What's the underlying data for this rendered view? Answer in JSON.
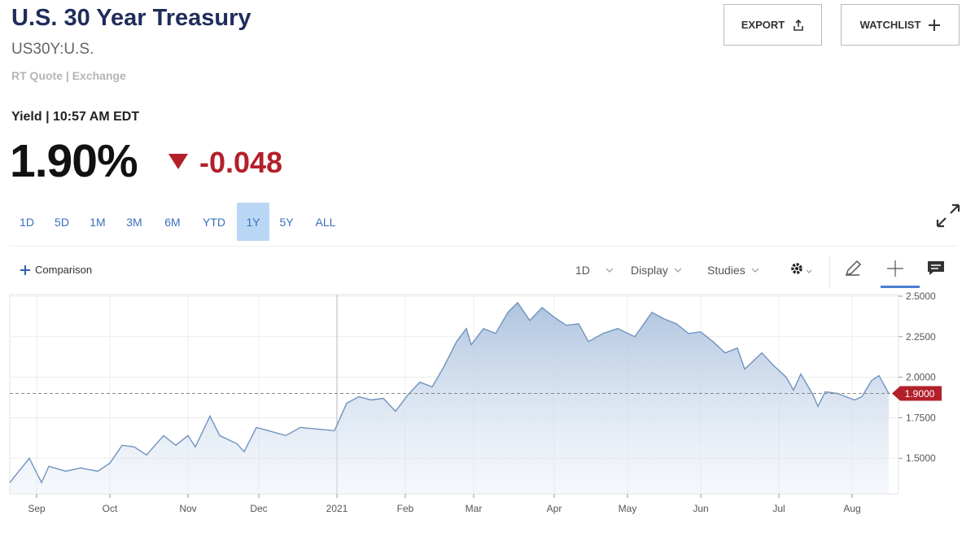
{
  "header": {
    "title": "U.S. 30 Year Treasury",
    "symbol": "US30Y:U.S.",
    "quote_source": "RT Quote | Exchange"
  },
  "buttons": [
    "EXPORT",
    "WATCHLIST"
  ],
  "quote": {
    "label": "Yield | 10:57 AM EDT",
    "last": "1.90%",
    "change": "-0.048"
  },
  "range_tabs": {
    "items": [
      "1D",
      "5D",
      "1M",
      "3M",
      "6M",
      "YTD",
      "1Y",
      "5Y",
      "ALL"
    ],
    "active_index": 6
  },
  "toolbar": {
    "comparison": "Comparison",
    "interval": "1D",
    "display": "Display",
    "studies": "Studies"
  },
  "chart": {
    "type": "area",
    "color": "#6f93bf",
    "x": [
      -11,
      -3,
      0,
      2,
      5,
      12,
      18,
      25,
      30,
      35,
      40,
      45,
      52,
      57,
      62,
      65,
      71,
      75,
      82,
      85,
      90,
      95,
      102,
      108,
      115,
      122,
      127,
      132,
      137,
      142,
      147,
      152,
      157,
      162,
      167,
      172,
      176,
      178,
      183,
      188,
      193,
      197,
      202,
      207,
      212,
      217,
      222,
      226,
      232,
      238,
      245,
      252,
      257,
      262,
      267,
      272,
      277,
      282,
      287,
      290,
      297,
      302,
      307,
      310,
      313,
      318,
      320,
      323,
      328,
      335,
      338,
      342,
      345,
      349
    ],
    "values": [
      1.35,
      1.5,
      1.41,
      1.35,
      1.45,
      1.42,
      1.44,
      1.42,
      1.47,
      1.58,
      1.57,
      1.52,
      1.64,
      1.58,
      1.64,
      1.57,
      1.76,
      1.64,
      1.59,
      1.54,
      1.69,
      1.67,
      1.64,
      1.69,
      1.68,
      1.67,
      1.84,
      1.88,
      1.86,
      1.87,
      1.79,
      1.89,
      1.97,
      1.94,
      2.07,
      2.22,
      2.3,
      2.2,
      2.3,
      2.27,
      2.4,
      2.46,
      2.35,
      2.43,
      2.37,
      2.32,
      2.33,
      2.22,
      2.27,
      2.3,
      2.25,
      2.4,
      2.36,
      2.33,
      2.27,
      2.28,
      2.22,
      2.15,
      2.18,
      2.05,
      2.15,
      2.07,
      2.0,
      1.92,
      2.02,
      1.89,
      1.82,
      1.91,
      1.9,
      1.86,
      1.88,
      1.98,
      2.01,
      1.9
    ],
    "xlim": [
      -11,
      353
    ],
    "xticks": [
      {
        "value": 0,
        "label": "Sep"
      },
      {
        "value": 30,
        "label": "Oct"
      },
      {
        "value": 62,
        "label": "Nov"
      },
      {
        "value": 91,
        "label": "Dec"
      },
      {
        "value": 123,
        "label": "2021"
      },
      {
        "value": 151,
        "label": "Feb"
      },
      {
        "value": 179,
        "label": "Mar"
      },
      {
        "value": 212,
        "label": "Apr"
      },
      {
        "value": 242,
        "label": "May"
      },
      {
        "value": 272,
        "label": "Jun"
      },
      {
        "value": 304,
        "label": "Jul"
      },
      {
        "value": 334,
        "label": "Aug"
      }
    ],
    "ylim": [
      1.28,
      2.51
    ],
    "yticks": [
      {
        "value": 1.5,
        "label": "1.5000"
      },
      {
        "value": 1.75,
        "label": "1.7500"
      },
      {
        "value": 2.0,
        "label": "2.0000"
      },
      {
        "value": 2.25,
        "label": "2.2500"
      },
      {
        "value": 2.5,
        "label": "2.5000"
      }
    ],
    "last_marker": {
      "value": 1.9,
      "label": "1.9000"
    },
    "grid": true
  }
}
